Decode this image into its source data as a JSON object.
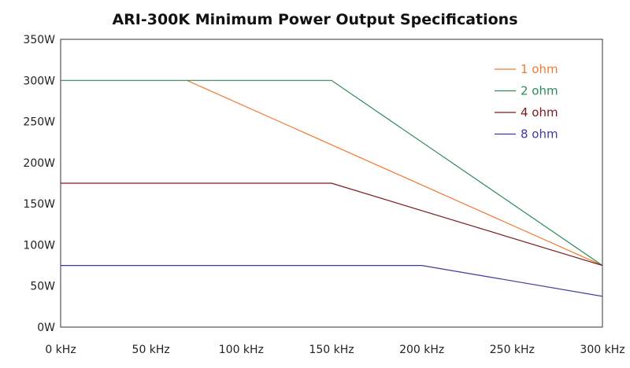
{
  "chart_data": {
    "type": "line",
    "title": "ARI-300K Minimum Power Output Specifications",
    "xlabel": "",
    "ylabel": "",
    "xlim": [
      0,
      300
    ],
    "ylim": [
      0,
      350
    ],
    "x_ticks": [
      0,
      50,
      100,
      150,
      200,
      250,
      300
    ],
    "x_tick_labels": [
      "0 kHz",
      "50 kHz",
      "100 kHz",
      "150 kHz",
      "200 kHz",
      "250 kHz",
      "300 kHz"
    ],
    "y_ticks": [
      0,
      50,
      100,
      150,
      200,
      250,
      300,
      350
    ],
    "y_tick_labels": [
      "0W",
      "50W",
      "100W",
      "150W",
      "200W",
      "250W",
      "300W",
      "350W"
    ],
    "grid": false,
    "legend_position": "top-right",
    "series": [
      {
        "name": "1 ohm",
        "color": "#f07a30",
        "x": [
          0,
          70,
          300
        ],
        "y": [
          300,
          300,
          75
        ],
        "x_start_visible": 70
      },
      {
        "name": "2 ohm",
        "color": "#2e8b57",
        "x": [
          0,
          150,
          300
        ],
        "y": [
          300,
          300,
          75
        ]
      },
      {
        "name": "4 ohm",
        "color": "#7a1a1a",
        "x": [
          0,
          150,
          300
        ],
        "y": [
          175,
          175,
          75
        ]
      },
      {
        "name": "8 ohm",
        "color": "#3a3aa0",
        "x": [
          0,
          200,
          300
        ],
        "y": [
          75,
          75,
          37.5
        ]
      }
    ]
  }
}
